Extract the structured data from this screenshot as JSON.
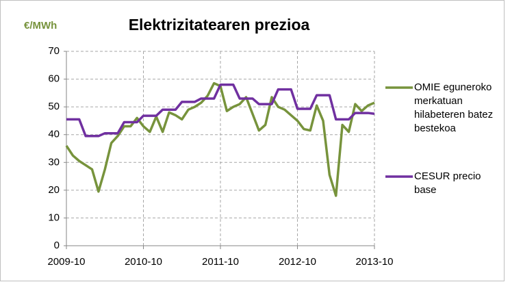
{
  "chart_data": {
    "type": "line",
    "title": "Elektrizitatearen prezioa",
    "y_label": "€/MWh",
    "categories": [
      "2009-10",
      null,
      null,
      null,
      null,
      null,
      null,
      null,
      null,
      null,
      null,
      null,
      "2010-10",
      null,
      null,
      null,
      null,
      null,
      null,
      null,
      null,
      null,
      null,
      null,
      "2011-10",
      null,
      null,
      null,
      null,
      null,
      null,
      null,
      null,
      null,
      null,
      null,
      "2012-10",
      null,
      null,
      null,
      null,
      null,
      null,
      null,
      null,
      null,
      null,
      null,
      "2013-10"
    ],
    "series": [
      {
        "name": "OMIE eguneroko merkatuan hilabeteren batez bestekoa",
        "color": "#77933c",
        "values": [
          36,
          32.5,
          30.5,
          29,
          27.5,
          19.5,
          27.5,
          37,
          39.5,
          43,
          43,
          46,
          43,
          41,
          46.5,
          41,
          48,
          47,
          45.5,
          49,
          50,
          51.5,
          54,
          58.5,
          57.5,
          48.5,
          50,
          51,
          53.5,
          47.5,
          41.5,
          43.5,
          53.5,
          50,
          49,
          47,
          45,
          42,
          41.5,
          50.5,
          45,
          25.5,
          18,
          43.5,
          41,
          51,
          48.5,
          50.5,
          51.5
        ]
      },
      {
        "name": "CESUR precio base",
        "color": "#7030a0",
        "values": [
          45.5,
          45.5,
          45.5,
          39.5,
          39.5,
          39.5,
          40.5,
          40.5,
          40.5,
          44.5,
          44.5,
          44.5,
          46.8,
          46.8,
          46.8,
          49,
          49,
          49,
          51.8,
          51.8,
          51.8,
          53,
          53,
          53,
          58,
          58,
          58,
          53,
          53,
          53,
          51,
          51,
          51,
          56.3,
          56.3,
          56.3,
          49.3,
          49.3,
          49.3,
          54.2,
          54.2,
          54.2,
          45.5,
          45.5,
          45.5,
          47.8,
          47.8,
          47.8,
          47.5
        ]
      }
    ],
    "ylim": [
      0,
      70
    ],
    "yticks": [
      0,
      10,
      20,
      30,
      40,
      50,
      60,
      70
    ],
    "grid": true
  }
}
